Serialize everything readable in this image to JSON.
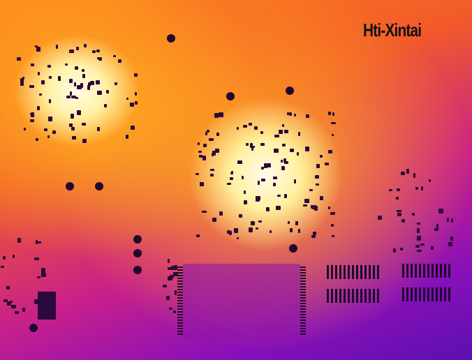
{
  "image": {
    "subject": "thermal-camera-pcb",
    "palette": [
      "#fffbe8",
      "#ffd040",
      "#ff8a1a",
      "#c8208a",
      "#5a10b0"
    ]
  },
  "watermark": {
    "text": "Hti-Xintai"
  }
}
